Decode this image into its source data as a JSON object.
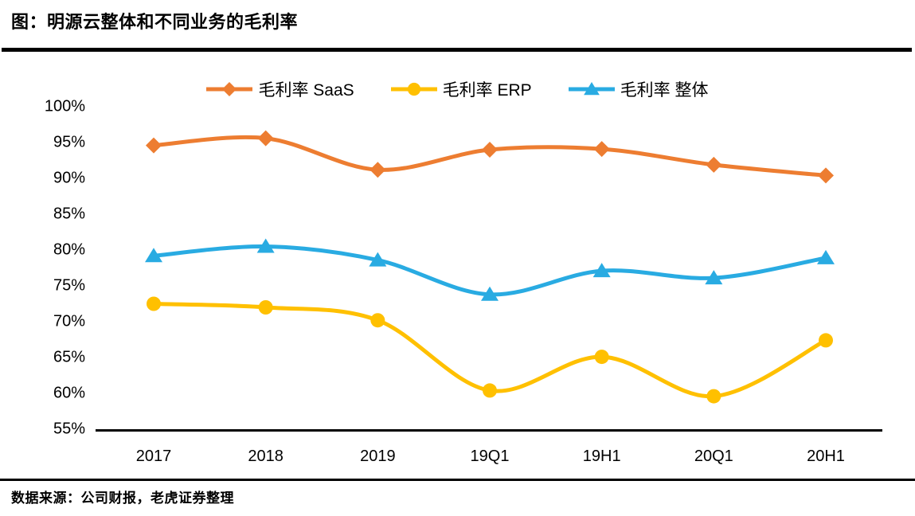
{
  "title": "图：明源云整体和不同业务的毛利率",
  "source_note": "数据来源：公司财报，老虎证券整理",
  "colors": {
    "saas": "#ED7D31",
    "erp": "#FFC000",
    "overall": "#29ABE2",
    "text": "#000000",
    "rule": "#000000",
    "background": "#FFFFFF"
  },
  "chart_data": {
    "type": "line",
    "title": "明源云整体和不同业务的毛利率",
    "categories": [
      "2017",
      "2018",
      "2019",
      "19Q1",
      "19H1",
      "20Q1",
      "20H1"
    ],
    "series": [
      {
        "name": "毛利率 SaaS",
        "marker": "diamond",
        "color": "#ED7D31",
        "values": [
          94.6,
          95.6,
          91.2,
          94.0,
          94.1,
          91.9,
          90.4
        ]
      },
      {
        "name": "毛利率 ERP",
        "marker": "circle",
        "color": "#FFC000",
        "values": [
          72.5,
          72.0,
          70.2,
          60.4,
          65.1,
          59.6,
          67.4
        ]
      },
      {
        "name": "毛利率 整体",
        "marker": "triangle",
        "color": "#29ABE2",
        "values": [
          79.2,
          80.5,
          78.6,
          73.8,
          77.1,
          76.1,
          78.9
        ]
      }
    ],
    "ylim": [
      55,
      100
    ],
    "yticks": {
      "values": [
        100,
        95,
        90,
        85,
        80,
        75,
        70,
        65,
        60,
        55
      ],
      "labels": [
        "100%",
        "95%",
        "90%",
        "85%",
        "80%",
        "75%",
        "70%",
        "65%",
        "60%",
        "55%"
      ]
    },
    "unit": "%",
    "grid": false,
    "smooth": true,
    "legend_position": "top-center"
  }
}
